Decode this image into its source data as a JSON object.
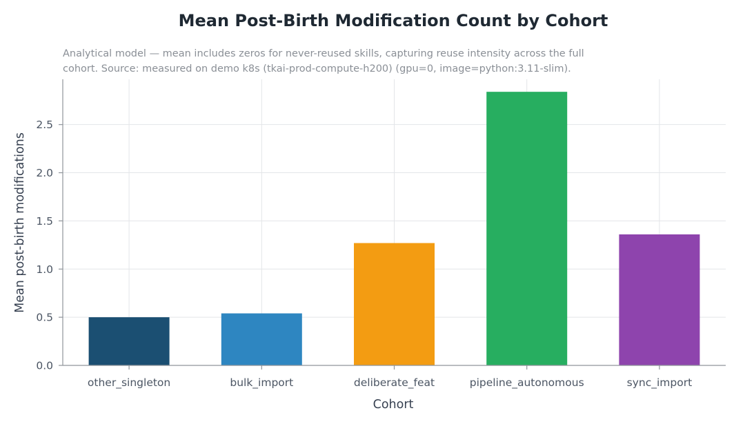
{
  "chart_data": {
    "type": "bar",
    "title": "Mean Post-Birth Modification Count by Cohort",
    "subtitle_lines": [
      "Analytical model — mean includes zeros for never-reused skills, capturing reuse intensity across the full",
      "cohort. Source: measured on demo k8s (tkai-prod-compute-h200) (gpu=0, image=python:3.11-slim)."
    ],
    "xlabel": "Cohort",
    "ylabel": "Mean post-birth modifications",
    "categories": [
      "other_singleton",
      "bulk_import",
      "deliberate_feat",
      "pipeline_autonomous",
      "sync_import"
    ],
    "values": [
      0.5,
      0.54,
      1.27,
      2.84,
      1.36
    ],
    "colors": [
      "#1b4f72",
      "#2e86c1",
      "#f39c12",
      "#27ae60",
      "#8e44ad"
    ],
    "ylim": [
      0,
      2.97
    ],
    "yticks": [
      0.0,
      0.5,
      1.0,
      1.5,
      2.0,
      2.5
    ],
    "ytick_labels": [
      "0.0",
      "0.5",
      "1.0",
      "1.5",
      "2.0",
      "2.5"
    ],
    "grid": true,
    "legend": "none"
  }
}
